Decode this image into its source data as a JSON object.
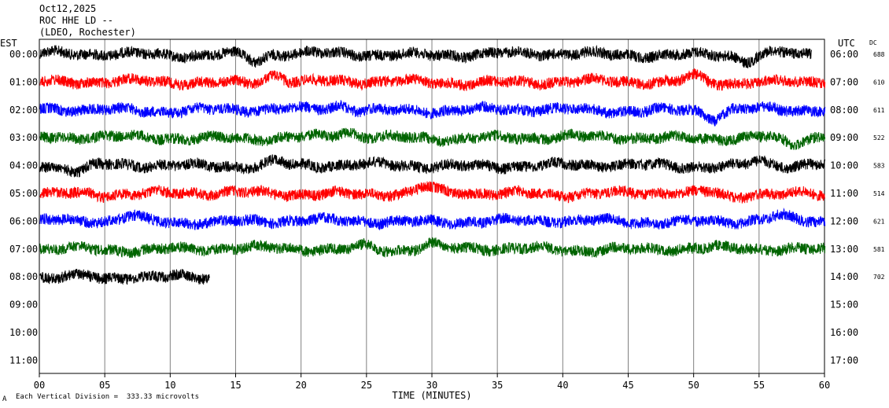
{
  "header": {
    "date": "Oct12,2025",
    "station": "ROC HHE LD --",
    "network": "(LDEO, Rochester)"
  },
  "labels": {
    "left_tz": "EST",
    "right_tz": "UTC",
    "dc": "DC",
    "footer_scale": "Each Vertical Division =  333.33 microvolts",
    "footer_mark": "A"
  },
  "chart_data": {
    "type": "line",
    "xlabel": "TIME (MINUTES)",
    "xlim": [
      0,
      60
    ],
    "x_ticks": [
      "00",
      "05",
      "10",
      "15",
      "20",
      "25",
      "30",
      "35",
      "40",
      "45",
      "50",
      "55",
      "60"
    ],
    "left_hours": [
      "00:00",
      "01:00",
      "02:00",
      "03:00",
      "04:00",
      "05:00",
      "06:00",
      "07:00",
      "08:00",
      "09:00",
      "10:00",
      "11:00"
    ],
    "right_hours": [
      "06:00",
      "07:00",
      "08:00",
      "09:00",
      "10:00",
      "11:00",
      "12:00",
      "13:00",
      "14:00",
      "15:00",
      "16:00",
      "17:00"
    ],
    "dc_offsets": [
      "688",
      "610",
      "611",
      "522",
      "583",
      "514",
      "621",
      "581",
      "702"
    ],
    "trace_colors": [
      "#000000",
      "#ff0000",
      "#0000ff",
      "#006400"
    ],
    "series": [
      {
        "hour_est": "00:00",
        "color": "#000000",
        "end_minute": 59,
        "events": [
          [
            16.5,
            1.0
          ],
          [
            54,
            1.1
          ]
        ]
      },
      {
        "hour_est": "01:00",
        "color": "#ff0000",
        "end_minute": 60,
        "events": [
          [
            18,
            -1.2
          ],
          [
            50,
            -1.0
          ]
        ]
      },
      {
        "hour_est": "02:00",
        "color": "#0000ff",
        "end_minute": 60,
        "events": [
          [
            51.5,
            1.2
          ],
          [
            23,
            -0.7
          ]
        ]
      },
      {
        "hour_est": "03:00",
        "color": "#006400",
        "end_minute": 60,
        "events": [
          [
            57.5,
            1.0
          ],
          [
            23.5,
            -0.8
          ]
        ]
      },
      {
        "hour_est": "04:00",
        "color": "#000000",
        "end_minute": 60,
        "events": [
          [
            3,
            0.9
          ],
          [
            18,
            -0.6
          ],
          [
            55,
            -0.7
          ]
        ]
      },
      {
        "hour_est": "05:00",
        "color": "#ff0000",
        "end_minute": 60,
        "events": [
          [
            29.5,
            -0.8
          ],
          [
            53,
            0.6
          ]
        ]
      },
      {
        "hour_est": "06:00",
        "color": "#0000ff",
        "end_minute": 60,
        "events": [
          [
            7,
            -0.7
          ],
          [
            56.5,
            -0.6
          ]
        ]
      },
      {
        "hour_est": "07:00",
        "color": "#006400",
        "end_minute": 60,
        "events": [
          [
            25,
            -0.5
          ],
          [
            30,
            -0.6
          ]
        ]
      },
      {
        "hour_est": "08:00",
        "color": "#000000",
        "end_minute": 13,
        "events": [
          [
            5,
            0.5
          ]
        ]
      }
    ]
  }
}
